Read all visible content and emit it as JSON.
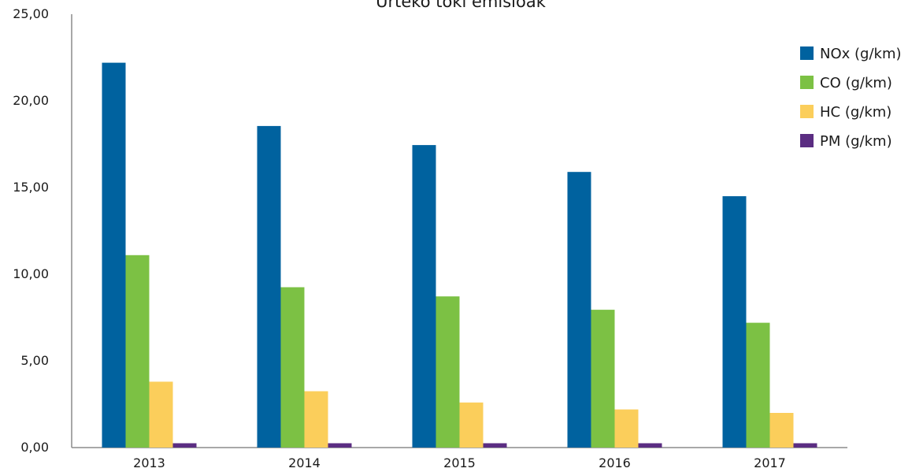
{
  "chart_data": {
    "type": "bar",
    "title": "Urteko toki emisioak",
    "categories": [
      "2013",
      "2014",
      "2015",
      "2016",
      "2017"
    ],
    "series": [
      {
        "name": "NOx (g/km)",
        "color": "#00629f",
        "values": [
          22.2,
          18.55,
          17.45,
          15.9,
          14.5
        ]
      },
      {
        "name": "CO (g/km)",
        "color": "#7cc144",
        "values": [
          11.1,
          9.25,
          8.72,
          7.95,
          7.2
        ]
      },
      {
        "name": "HC (g/km)",
        "color": "#fbce5b",
        "values": [
          3.8,
          3.25,
          2.6,
          2.2,
          2.0
        ]
      },
      {
        "name": "PM (g/km)",
        "color": "#5b2d82",
        "values": [
          0.25,
          0.25,
          0.25,
          0.25,
          0.25
        ]
      }
    ],
    "yticks": [
      "0,00",
      "5,00",
      "10,00",
      "15,00",
      "20,00",
      "25,00"
    ],
    "ylim": [
      0,
      25
    ],
    "legend_position": "right",
    "grid": false
  }
}
